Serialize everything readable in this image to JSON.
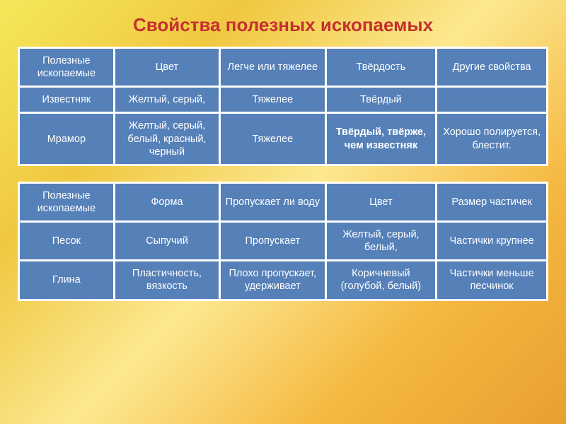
{
  "title": "Свойства полезных ископаемых",
  "table1": {
    "headers": [
      "Полезные ископаемые",
      "Цвет",
      "Легче или тяжелее",
      "Твёрдость",
      "Другие свойства"
    ],
    "rows": [
      {
        "name": "Известняк",
        "color": "Желтый, серый,",
        "weight": "Тяжелее",
        "hardness": "Твёрдый",
        "other": ""
      },
      {
        "name": "Мрамор",
        "color": "Желтый, серый, белый, красный, черный",
        "weight": "Тяжелее",
        "hardness": "Твёрдый, твёрже, чем известняк",
        "other": "Хорошо полируется, блестит."
      }
    ]
  },
  "table2": {
    "headers": [
      "Полезные ископаемые",
      "Форма",
      "Пропускает ли воду",
      "Цвет",
      "Размер частичек"
    ],
    "rows": [
      {
        "name": "Песок",
        "form": "Сыпучий",
        "water": "Пропускает",
        "color": "Желтый, серый, белый,",
        "size": "Частички крупнее"
      },
      {
        "name": "Глина",
        "form": "Пластичность, вязкость",
        "water": "Плохо пропускает, удерживает",
        "color": "Коричневый (голубой, белый)",
        "size": "Частички меньше песчинок"
      }
    ]
  },
  "styling": {
    "title_color": "#c43030",
    "title_fontsize": 26,
    "cell_background": "#5580b8",
    "cell_text_color": "#ffffff",
    "cell_fontsize": 14.5,
    "cell_spacing": 3,
    "table_background": "#ffffff",
    "page_background_gradient": [
      "#f5e85a",
      "#f0c840",
      "#fde890",
      "#f5b840",
      "#e8a030"
    ]
  }
}
